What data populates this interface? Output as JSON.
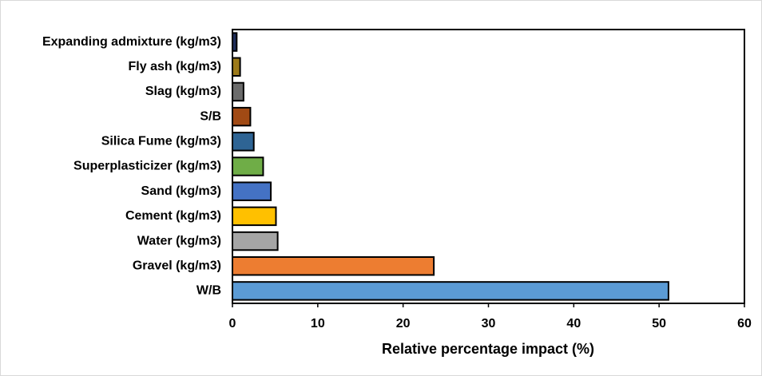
{
  "chart_data": {
    "type": "barh",
    "xlabel": "Relative percentage impact (%)",
    "categories": [
      "Expanding admixture (kg/m3)",
      "Fly ash (kg/m3)",
      "Slag (kg/m3)",
      "S/B",
      "Silica Fume (kg/m3)",
      "Superplasticizer (kg/m3)",
      "Sand (kg/m3)",
      "Cement (kg/m3)",
      "Water (kg/m3)",
      "Gravel (kg/m3)",
      "W/B"
    ],
    "values": [
      0.5,
      0.9,
      1.3,
      2.1,
      2.5,
      3.6,
      4.5,
      5.1,
      5.3,
      23.6,
      51.1
    ],
    "colors": [
      "#1f2d5a",
      "#9c7a1a",
      "#6b6b6b",
      "#a14a14",
      "#2e6494",
      "#6fad47",
      "#4472c4",
      "#ffc000",
      "#a5a5a5",
      "#ed7d31",
      "#5b9bd5"
    ],
    "xlim": [
      0,
      60
    ],
    "xticks": [
      0,
      10,
      20,
      30,
      40,
      50,
      60
    ]
  }
}
